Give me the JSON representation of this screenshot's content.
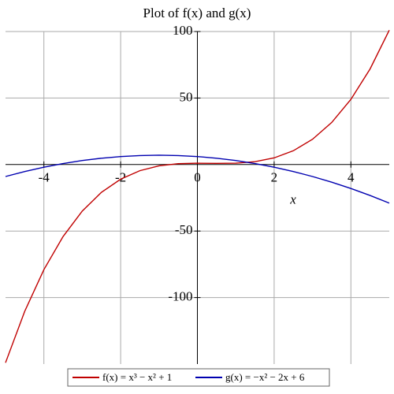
{
  "chart_data": {
    "type": "line",
    "title": "Plot of f(x) and g(x)",
    "x_label": "x",
    "x": [
      -5,
      -4.5,
      -4,
      -3.5,
      -3,
      -2.5,
      -2,
      -1.5,
      -1,
      -0.5,
      0,
      0.5,
      1,
      1.5,
      2,
      2.5,
      3,
      3.5,
      4,
      4.5,
      5
    ],
    "series": [
      {
        "name": "f(x) = x³ − x² + 1",
        "color": "#c00000",
        "values": [
          -149,
          -110.375,
          -79,
          -54.125,
          -35,
          -20.875,
          -11,
          -4.625,
          -1,
          0.625,
          1,
          0.875,
          1,
          2.125,
          5,
          10.375,
          19,
          31.625,
          49,
          71.875,
          101
        ]
      },
      {
        "name": "g(x) = −x² − 2x + 6",
        "color": "#0000b0",
        "values": [
          -9,
          -5.25,
          -2,
          0.75,
          3,
          4.75,
          6,
          6.75,
          7,
          6.75,
          6,
          4.75,
          3,
          0.75,
          -2,
          -5.25,
          -9,
          -13.25,
          -18,
          -23.25,
          -29
        ]
      }
    ],
    "xlim": [
      -5,
      5
    ],
    "ylim": [
      -150,
      100
    ],
    "xticks": [
      -4,
      -2,
      0,
      2,
      4
    ],
    "yticks": [
      -100,
      -50,
      50,
      100
    ],
    "grid": true
  }
}
